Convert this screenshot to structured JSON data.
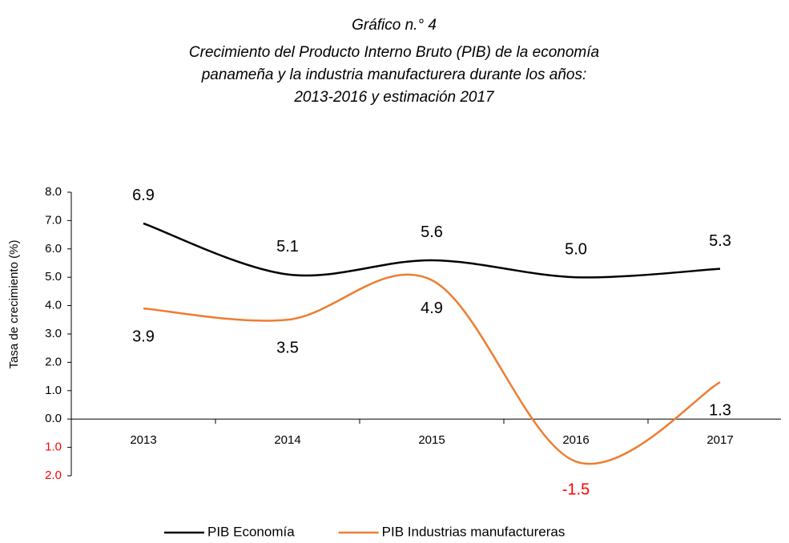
{
  "chart_data": {
    "type": "line",
    "title": "Gráfico n.° 4",
    "subtitle": [
      "Crecimiento del Producto Interno Bruto (PIB) de la economía",
      "panameña y la industria manufacturera durante los años:",
      "2013-2016 y estimación 2017"
    ],
    "y_label": "Tasa de crecimiento (%)",
    "categories": [
      "2013",
      "2014",
      "2015",
      "2016",
      "2017"
    ],
    "series": [
      {
        "name": "PIB Economía",
        "color": "#000000",
        "values": [
          6.9,
          5.1,
          5.6,
          5.0,
          5.3
        ],
        "value_labels": [
          "6.9",
          "5.1",
          "5.6",
          "5.0",
          "5.3"
        ]
      },
      {
        "name": "PIB Industrias manufactureras",
        "color": "#ed7d31",
        "values": [
          3.9,
          3.5,
          4.9,
          -1.5,
          1.3
        ],
        "value_labels": [
          "3.9",
          "3.5",
          "4.9",
          "-1.5",
          "1.3"
        ]
      }
    ],
    "ylim": [
      -2,
      8
    ],
    "yticks": [
      {
        "value": 8,
        "label": "8.0"
      },
      {
        "value": 7,
        "label": "7.0"
      },
      {
        "value": 6,
        "label": "6.0"
      },
      {
        "value": 5,
        "label": "5.0"
      },
      {
        "value": 4,
        "label": "4.0"
      },
      {
        "value": 3,
        "label": "3.0"
      },
      {
        "value": 2,
        "label": "2.0"
      },
      {
        "value": 1,
        "label": "1.0"
      },
      {
        "value": 0,
        "label": "0.0"
      },
      {
        "value": -1,
        "label": "1.0"
      },
      {
        "value": -2,
        "label": "2.0"
      }
    ],
    "negative_color": "#ff0000",
    "smooth": true,
    "grid": false
  }
}
